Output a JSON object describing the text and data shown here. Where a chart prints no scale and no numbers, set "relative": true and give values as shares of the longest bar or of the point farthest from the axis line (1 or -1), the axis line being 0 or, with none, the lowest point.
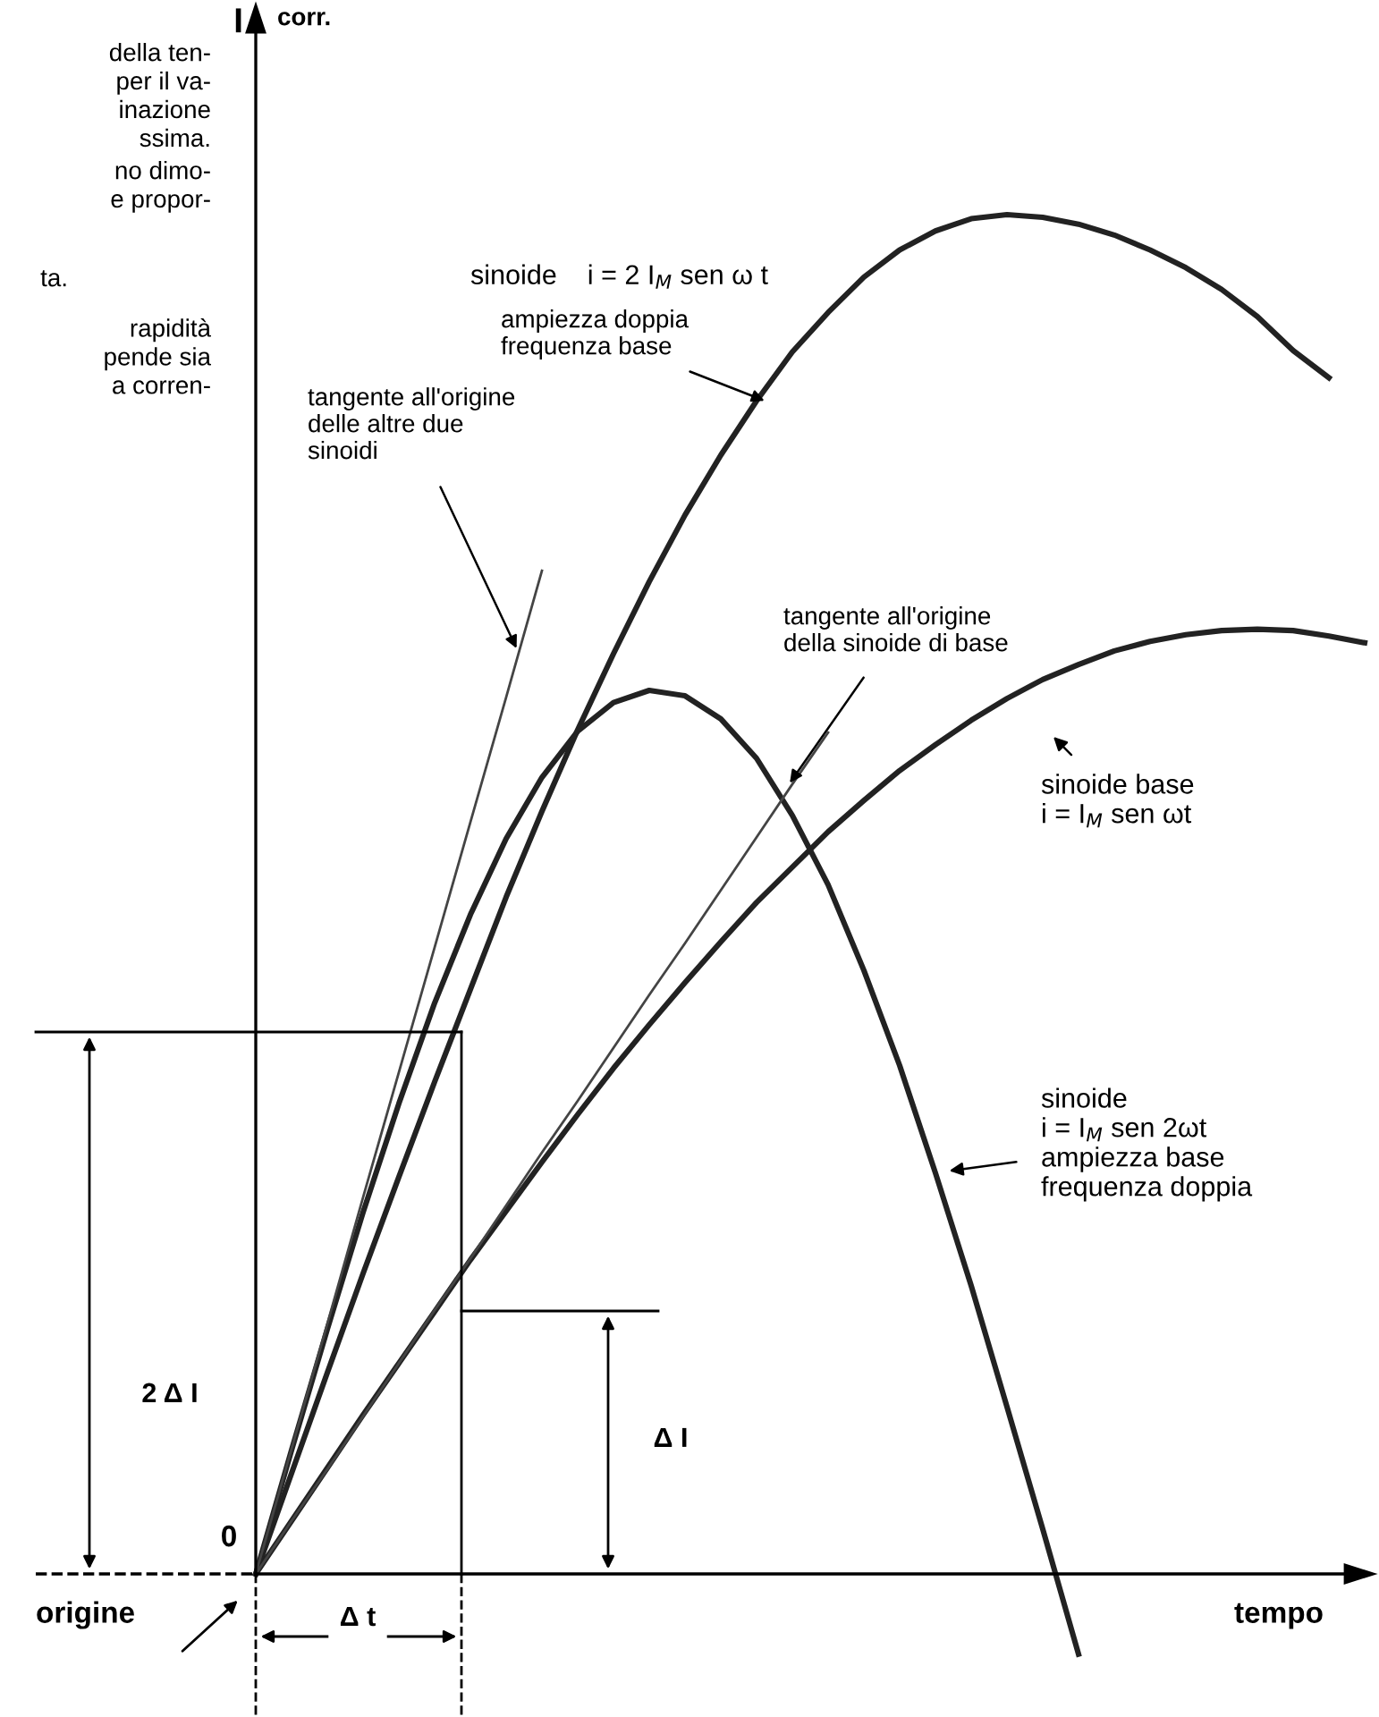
{
  "chart_data": {
    "type": "line",
    "relative": true,
    "xlabel": "tempo",
    "categories": [
      null,
      null,
      null,
      null,
      null,
      null,
      null,
      null,
      null,
      null,
      null,
      null,
      null,
      null,
      null,
      null,
      null,
      null,
      null,
      null,
      null,
      null,
      null,
      null,
      null,
      null,
      null,
      null,
      null,
      null,
      null,
      null
    ],
    "series": [
      {
        "color": "#222222",
        "values": [
          0,
          0.074,
          0.148,
          0.221,
          0.292,
          0.362,
          0.43,
          0.498,
          0.561,
          0.621,
          0.677,
          0.73,
          0.779,
          0.823,
          0.863,
          0.899,
          0.928,
          0.954,
          0.974,
          0.988,
          0.997,
          1,
          0.998,
          0.993,
          0.985,
          0.974,
          0.961,
          0.945,
          0.925,
          0.9,
          0.88,
          null
        ]
      },
      {
        "color": "#222222",
        "values": [
          0,
          0.039,
          0.078,
          0.117,
          0.155,
          0.193,
          0.231,
          0.267,
          0.303,
          0.338,
          0.372,
          0.404,
          0.435,
          0.465,
          0.494,
          0.52,
          0.546,
          0.569,
          0.591,
          0.61,
          0.628,
          0.644,
          0.658,
          0.669,
          0.679,
          0.686,
          0.691,
          0.694,
          0.695,
          0.694,
          0.69,
          0.685
        ]
      },
      {
        "color": "#222222",
        "values": [
          0,
          0.091,
          0.18,
          0.266,
          0.346,
          0.42,
          0.485,
          0.541,
          0.586,
          0.62,
          0.641,
          0.65,
          0.646,
          0.629,
          0.6,
          0.558,
          0.507,
          0.444,
          0.374,
          0.295,
          0.212,
          0.123,
          0.033,
          -0.059,
          null,
          null,
          null,
          null,
          null,
          null,
          null,
          null
        ]
      },
      {
        "color": "#444444",
        "values": [
          0,
          0.092,
          0.184,
          0.277,
          0.369,
          0.461,
          0.553,
          0.645,
          0.738,
          null,
          null,
          null,
          null,
          null,
          null,
          null,
          null,
          null,
          null,
          null,
          null,
          null,
          null,
          null,
          null,
          null,
          null,
          null,
          null,
          null,
          null,
          null
        ]
      },
      {
        "color": "#444444",
        "values": [
          0,
          0.039,
          0.077,
          0.116,
          0.155,
          0.194,
          0.232,
          0.271,
          0.31,
          0.348,
          0.387,
          0.426,
          0.464,
          0.503,
          0.542,
          0.581,
          0.619,
          null,
          null,
          null,
          null,
          null,
          null,
          null,
          null,
          null,
          null,
          null,
          null,
          null,
          null,
          null
        ]
      }
    ],
    "annotations": [
      "della ten-\nper il va-\ninazione\nssima.",
      "no dimo-\ne propor-",
      "ta.",
      "rapidità\npende sia\na corren-",
      "corr.",
      "sinoide    i = 2 I$_{M}$ sen ω t",
      "ampiezza doppia\nfrequenza base",
      "tangente all'origine\ndelle altre due\nsinoidi",
      "tangente all'origine\ndella sinoide di base",
      "sinoide base\ni = I$_{M}$ sen ωt",
      "sinoide\ni = I$_{M}$ sen 2ωt\nampiezza base\nfrequenza doppia",
      "2 Δ I",
      "Δ I",
      "Δ t",
      "origine",
      "0",
      "I"
    ]
  }
}
